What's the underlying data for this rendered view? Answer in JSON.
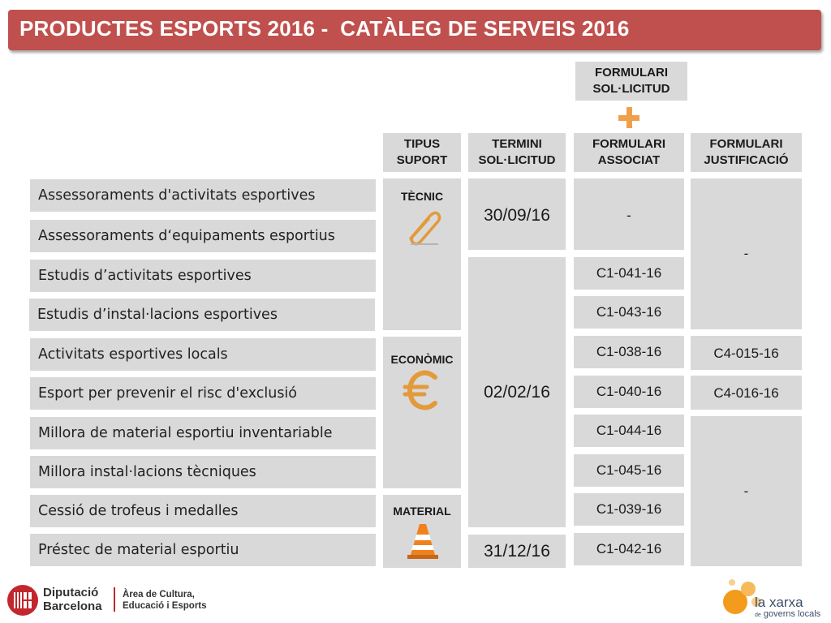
{
  "title": "PRODUCTES ESPORTS 2016 -  CATÀLEG DE SERVEIS 2016",
  "headers": {
    "formulari_sollicitud": [
      "FORMULARI",
      "SOL·LICITUD"
    ],
    "tipus_suport": [
      "TIPUS",
      "SUPORT"
    ],
    "termini": [
      "TERMINI",
      "SOL·LICITUD"
    ],
    "formulari_associat": [
      "FORMULARI",
      "ASSOCIAT"
    ],
    "formulari_justificacio": [
      "FORMULARI",
      "JUSTIFICACIÓ"
    ]
  },
  "services": [
    "Assessoraments d'activitats esportives",
    "Assessoraments d‘equipaments esportius",
    "Estudis d’activitats esportives",
    "Estudis d’instal·lacions esportives",
    "Activitats esportives locals",
    "Esport per prevenir el risc d'exclusió",
    "Millora de material esportiu inventariable",
    "Millora instal·lacions tècniques",
    "Cessió de trofeus i medalles",
    "Préstec de material esportiu"
  ],
  "support": {
    "tecnic": {
      "label": "TÈCNIC",
      "icon": "paperclip-icon"
    },
    "economic": {
      "label": "ECONÒMIC",
      "icon": "euro-icon"
    },
    "material": {
      "label": "MATERIAL",
      "icon": "traffic-cone-icon"
    }
  },
  "termini": [
    "30/09/16",
    "02/02/16",
    "31/12/16"
  ],
  "associat": [
    "-",
    "C1-041-16",
    "C1-043-16",
    "C1-038-16",
    "C1-040-16",
    "C1-044-16",
    "C1-045-16",
    "C1-039-16",
    "C1-042-16"
  ],
  "justificacio": [
    "-",
    "C4-015-16",
    "C4-016-16",
    "-"
  ],
  "footer": {
    "diputacio": [
      "Diputació",
      "Barcelona"
    ],
    "area": [
      "Àrea de Cultura,",
      "Educació i Esports"
    ],
    "xarxa": [
      "la xarxa",
      "de",
      "governs locals"
    ]
  },
  "colors": {
    "banner": "#c0504d",
    "cell": "#d9d9d9",
    "accent_orange": "#f0a04b",
    "brand_red": "#c2272d"
  }
}
